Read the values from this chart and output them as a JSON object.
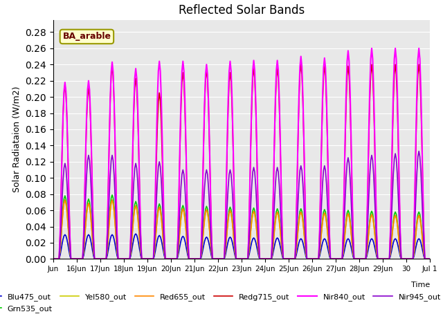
{
  "title": "Reflected Solar Bands",
  "ylabel": "Solar Radiataion (W/m2)",
  "ylim": [
    0,
    0.295
  ],
  "yticks": [
    0.0,
    0.02,
    0.04,
    0.06,
    0.08,
    0.1,
    0.12,
    0.14,
    0.16,
    0.18,
    0.2,
    0.22,
    0.24,
    0.26,
    0.28
  ],
  "annotation": "BA_arable",
  "bg_color": "#e8e8e8",
  "lines": [
    {
      "label": "Blu475_out",
      "color": "#0000cc",
      "lw": 1.2
    },
    {
      "label": "Grn535_out",
      "color": "#00cc00",
      "lw": 1.2
    },
    {
      "label": "Yel580_out",
      "color": "#cccc00",
      "lw": 1.2
    },
    {
      "label": "Red655_out",
      "color": "#ff8800",
      "lw": 1.2
    },
    {
      "label": "Redg715_out",
      "color": "#cc0000",
      "lw": 1.2
    },
    {
      "label": "Nir840_out",
      "color": "#ff00ff",
      "lw": 1.5
    },
    {
      "label": "Nir945_out",
      "color": "#8800cc",
      "lw": 1.2
    }
  ],
  "tick_labels": [
    "Jun",
    "16Jun",
    "17Jun",
    "18Jun",
    "19Jun",
    "20Jun",
    "21Jun",
    "22Jun",
    "23Jun",
    "24Jun",
    "25Jun",
    "26Jun",
    "27Jun",
    "28Jun",
    "29Jun",
    "30",
    "Jul 1"
  ],
  "title_fontsize": 12,
  "peak_variations": {
    "Blu475_out": [
      0.03,
      0.03,
      0.03,
      0.031,
      0.029,
      0.028,
      0.027,
      0.027,
      0.026,
      0.026,
      0.025,
      0.025,
      0.025,
      0.025,
      0.025,
      0.025
    ],
    "Grn535_out": [
      0.078,
      0.074,
      0.079,
      0.071,
      0.068,
      0.066,
      0.065,
      0.064,
      0.063,
      0.062,
      0.062,
      0.061,
      0.06,
      0.059,
      0.058,
      0.058
    ],
    "Yel580_out": [
      0.072,
      0.068,
      0.072,
      0.065,
      0.063,
      0.061,
      0.06,
      0.059,
      0.058,
      0.057,
      0.057,
      0.056,
      0.055,
      0.054,
      0.053,
      0.053
    ],
    "Red655_out": [
      0.073,
      0.069,
      0.073,
      0.066,
      0.064,
      0.062,
      0.061,
      0.06,
      0.059,
      0.058,
      0.058,
      0.057,
      0.056,
      0.055,
      0.054,
      0.054
    ],
    "Redg715_out": [
      0.215,
      0.211,
      0.238,
      0.223,
      0.205,
      0.23,
      0.233,
      0.23,
      0.235,
      0.235,
      0.24,
      0.238,
      0.238,
      0.24,
      0.24,
      0.24
    ],
    "Nir840_out": [
      0.218,
      0.22,
      0.243,
      0.235,
      0.244,
      0.244,
      0.24,
      0.244,
      0.245,
      0.245,
      0.25,
      0.248,
      0.257,
      0.26,
      0.26,
      0.26
    ],
    "Nir945_out": [
      0.118,
      0.128,
      0.128,
      0.118,
      0.12,
      0.11,
      0.11,
      0.11,
      0.113,
      0.113,
      0.115,
      0.115,
      0.125,
      0.128,
      0.13,
      0.133
    ]
  }
}
